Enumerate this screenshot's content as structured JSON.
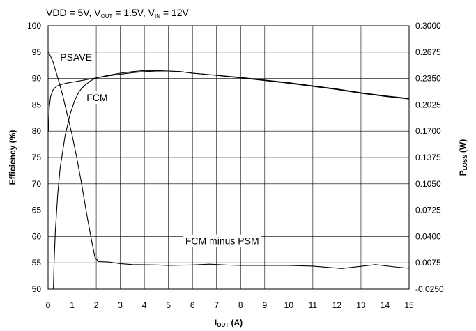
{
  "chart_data": {
    "type": "line",
    "title": {
      "parts": [
        {
          "t": "VDD = 5V, V",
          "sub": false
        },
        {
          "t": "OUT",
          "sub": true
        },
        {
          "t": " = 1.5V, V",
          "sub": false
        },
        {
          "t": "IN",
          "sub": true
        },
        {
          "t": " = 12V",
          "sub": false
        }
      ]
    },
    "xlabel": {
      "main": "I",
      "sub": "OUT",
      "suffix": " (A)"
    },
    "ylabel": "Efficiency (%)",
    "y2label": {
      "main": "P",
      "sub": "LOSS",
      "suffix": " (W)"
    },
    "xlim": [
      0,
      15
    ],
    "ylim": [
      50,
      100
    ],
    "y2lim": [
      -0.025,
      0.3
    ],
    "x_ticks": [
      "0",
      "1",
      "2",
      "3",
      "4",
      "5",
      "6",
      "7",
      "8",
      "9",
      "10",
      "11",
      "12",
      "13",
      "14",
      "15"
    ],
    "y_ticks": [
      "50",
      "55",
      "60",
      "65",
      "70",
      "75",
      "80",
      "85",
      "90",
      "95",
      "100"
    ],
    "y2_ticks": [
      "-0.0250",
      "0.0075",
      "0.0400",
      "0.0725",
      "0.1050",
      "0.1375",
      "0.1700",
      "0.2025",
      "0.2350",
      "0.2675",
      "0.3000"
    ],
    "grid": true,
    "annotations": [
      {
        "text": "PSAVE",
        "x": 0.5,
        "y": 93.4
      },
      {
        "text": "FCM",
        "x": 1.6,
        "y": 85.7
      },
      {
        "text": "FCM minus PSM",
        "x": 5.7,
        "y": 58.5
      }
    ],
    "series": [
      {
        "axis": "left",
        "x": [
          0.02,
          0.05,
          0.1,
          0.2,
          0.35,
          0.5,
          0.75,
          1.0,
          1.5,
          2.0,
          2.5,
          3.0,
          3.5,
          4.0,
          4.5,
          5.0,
          5.5,
          6.0,
          7.0,
          8.0,
          9.0,
          10.0,
          11.0,
          12.0,
          13.0,
          14.0,
          15.0
        ],
        "y": [
          80.0,
          84.5,
          86.5,
          87.8,
          88.5,
          88.8,
          89.1,
          89.3,
          89.7,
          90.1,
          90.5,
          90.8,
          91.1,
          91.3,
          91.4,
          91.4,
          91.3,
          91.0,
          90.6,
          90.2,
          89.7,
          89.2,
          88.6,
          88.0,
          87.3,
          86.7,
          86.2
        ]
      },
      {
        "axis": "left",
        "x": [
          0.22,
          0.25,
          0.3,
          0.4,
          0.5,
          0.7,
          0.9,
          1.1,
          1.3,
          1.5,
          1.75,
          2.0,
          2.5,
          3.0,
          3.5,
          4.0,
          4.5,
          5.0,
          5.5,
          6.0,
          7.0,
          8.0,
          9.0,
          10.0,
          11.0,
          12.0,
          13.0,
          14.0,
          15.0
        ],
        "y": [
          50.0,
          55.0,
          61.0,
          68.0,
          73.0,
          79.0,
          83.0,
          85.8,
          87.6,
          88.6,
          89.5,
          90.1,
          90.6,
          91.0,
          91.3,
          91.5,
          91.5,
          91.4,
          91.3,
          91.0,
          90.6,
          90.1,
          89.6,
          89.1,
          88.5,
          87.9,
          87.2,
          86.6,
          86.1
        ]
      },
      {
        "axis": "right",
        "x": [
          0.02,
          0.2,
          0.4,
          0.6,
          0.8,
          1.0,
          1.2,
          1.4,
          1.6,
          1.8,
          1.95,
          2.1,
          2.5,
          3.0,
          3.5,
          4.0,
          4.5,
          5.0,
          6.0,
          6.7,
          7.5,
          8.0,
          9.0,
          10.0,
          11.0,
          12.2,
          13.6,
          14.4,
          15.0
        ],
        "y": [
          0.2675,
          0.256,
          0.236,
          0.215,
          0.19,
          0.165,
          0.136,
          0.104,
          0.068,
          0.036,
          0.014,
          0.009,
          0.0085,
          0.0065,
          0.0053,
          0.005,
          0.0048,
          0.0042,
          0.0048,
          0.0058,
          0.0047,
          0.0043,
          0.0042,
          0.0042,
          0.0035,
          0.0005,
          0.0053,
          0.0025,
          0.0008
        ]
      }
    ]
  }
}
